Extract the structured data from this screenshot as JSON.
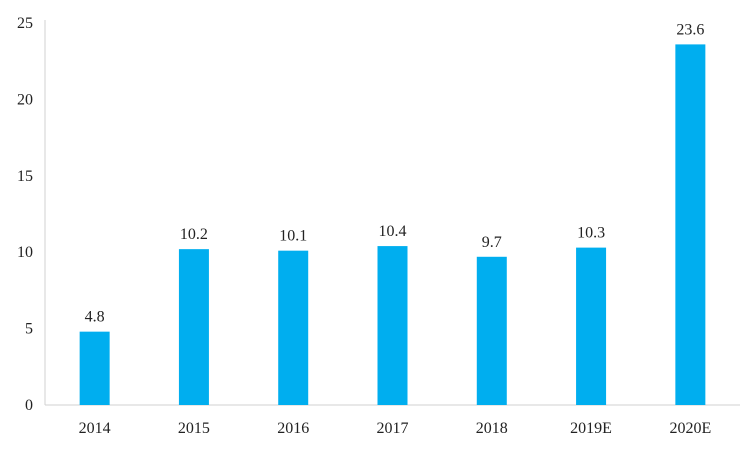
{
  "chart_data": {
    "type": "bar",
    "title": "",
    "xlabel": "",
    "ylabel": "",
    "categories": [
      "2014",
      "2015",
      "2016",
      "2017",
      "2018",
      "2019E",
      "2020E"
    ],
    "values": [
      4.8,
      10.2,
      10.1,
      10.4,
      9.7,
      10.3,
      23.6
    ],
    "data_labels": [
      "4.8",
      "10.2",
      "10.1",
      "10.4",
      "9.7",
      "10.3",
      "23.6"
    ],
    "ylim": [
      0,
      25
    ],
    "yticks": [
      0,
      5,
      10,
      15,
      20,
      25
    ],
    "ytick_labels": [
      "0",
      "5",
      "10",
      "15",
      "20",
      "25"
    ],
    "grid": false,
    "legend": "none",
    "colors": {
      "bar": "#00AEEF",
      "axis": "#D0D0D0",
      "text": "#222222"
    }
  }
}
